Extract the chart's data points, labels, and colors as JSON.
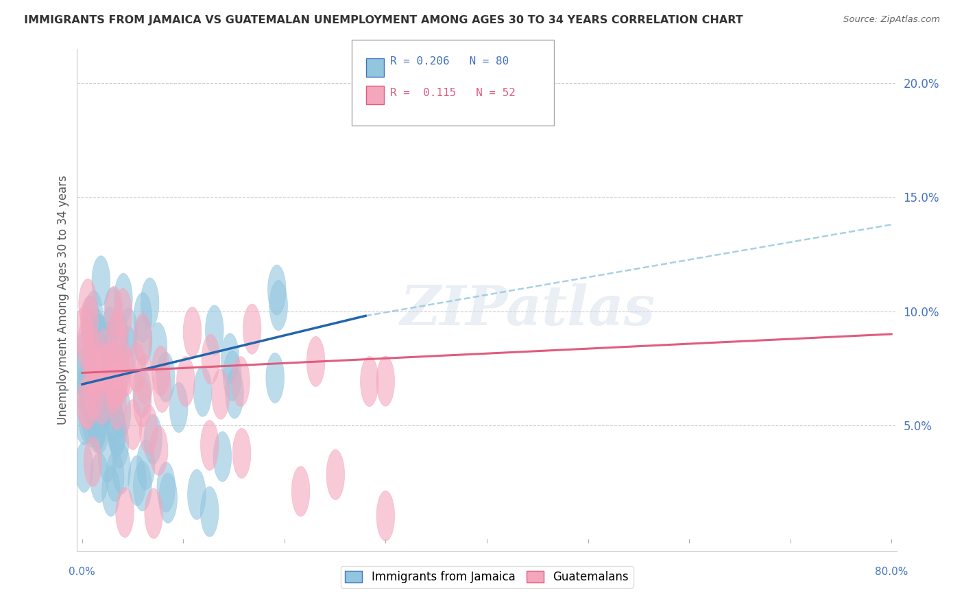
{
  "title": "IMMIGRANTS FROM JAMAICA VS GUATEMALAN UNEMPLOYMENT AMONG AGES 30 TO 34 YEARS CORRELATION CHART",
  "source": "Source: ZipAtlas.com",
  "ylabel": "Unemployment Among Ages 30 to 34 years",
  "legend1_label": "Immigrants from Jamaica",
  "legend2_label": "Guatemalans",
  "R1": "0.206",
  "N1": "80",
  "R2": "0.115",
  "N2": "52",
  "color_blue": "#92c5de",
  "color_pink": "#f4a6bd",
  "line_color_blue": "#2166ac",
  "line_color_pink": "#e05c7e",
  "dash_color": "#92c5de",
  "ytick_vals": [
    0.05,
    0.1,
    0.15,
    0.2
  ],
  "ytick_labels": [
    "5.0%",
    "10.0%",
    "15.0%",
    "20.0%"
  ],
  "ylim": [
    -0.005,
    0.215
  ],
  "xlim": [
    -0.005,
    0.805
  ],
  "blue_line_x": [
    0.0,
    0.28
  ],
  "blue_line_y": [
    0.068,
    0.098
  ],
  "dash_line_x": [
    0.28,
    0.8
  ],
  "dash_line_y": [
    0.098,
    0.138
  ],
  "pink_line_x": [
    0.0,
    0.8
  ],
  "pink_line_y": [
    0.073,
    0.09
  ],
  "watermark_text": "ZIPatlas"
}
